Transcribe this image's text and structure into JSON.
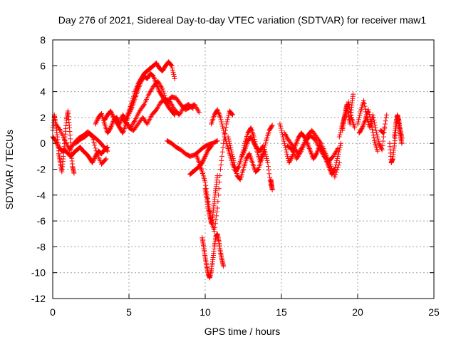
{
  "chart_data": {
    "type": "scatter",
    "title": "Day 276 of 2021, Sidereal Day-to-day VTEC variation (SDTVAR) for receiver maw1",
    "xlabel": "GPS time / hours",
    "ylabel": "SDTVAR / TECUs",
    "xlim": [
      0,
      25
    ],
    "ylim": [
      -12,
      8
    ],
    "xticks": [
      0,
      5,
      10,
      15,
      20,
      25
    ],
    "yticks": [
      -12,
      -10,
      -8,
      -6,
      -4,
      -2,
      0,
      2,
      4,
      6,
      8
    ],
    "grid": true,
    "marker": "+",
    "color": "#ff0000",
    "segments": [
      {
        "x": [
          0.0,
          0.1,
          0.2,
          0.3,
          0.4,
          0.5,
          0.6,
          0.7,
          0.8,
          0.9,
          1.0,
          1.1,
          1.2,
          1.3,
          1.4
        ],
        "y": [
          1.0,
          2.2,
          1.5,
          0.5,
          -0.8,
          -1.5,
          -2.2,
          -1.0,
          0.5,
          1.8,
          2.5,
          1.2,
          -0.5,
          -1.8,
          -2.3
        ]
      },
      {
        "x": [
          0.0,
          0.2,
          0.4,
          0.6,
          0.8,
          1.0,
          1.2,
          1.4,
          1.6,
          1.8,
          2.0,
          2.2,
          2.4,
          2.6,
          2.8,
          3.0,
          3.2,
          3.4,
          3.6
        ],
        "y": [
          0.5,
          0.2,
          -0.3,
          -0.6,
          -0.5,
          -0.8,
          -1.0,
          -0.7,
          -0.5,
          -0.3,
          -0.6,
          -0.8,
          -1.1,
          -1.5,
          -1.0,
          -0.6,
          -0.8,
          -0.5,
          -0.3
        ]
      },
      {
        "x": [
          0.2,
          0.5,
          0.8,
          1.1,
          1.4,
          1.7,
          2.0,
          2.3,
          2.6,
          2.9,
          3.2,
          3.5
        ],
        "y": [
          1.5,
          1.0,
          0.2,
          -0.5,
          0.0,
          0.4,
          0.6,
          0.9,
          0.5,
          -0.8,
          -1.6,
          -1.2
        ]
      },
      {
        "x": [
          1.5,
          1.8,
          2.1,
          2.4,
          2.7,
          3.0,
          3.3,
          3.6
        ],
        "y": [
          0.0,
          0.3,
          0.5,
          0.8,
          0.5,
          0.2,
          -0.2,
          -0.6
        ]
      },
      {
        "x": [
          2.8,
          3.0,
          3.2,
          3.4,
          3.6,
          3.8,
          4.0,
          4.2,
          4.4,
          4.6,
          4.8,
          5.0,
          5.2,
          5.4,
          5.6,
          5.8,
          6.0,
          6.2,
          6.4,
          6.6,
          6.8,
          7.0,
          7.2,
          7.4,
          7.6,
          7.8,
          8.0
        ],
        "y": [
          1.5,
          2.0,
          2.3,
          1.5,
          0.8,
          1.2,
          1.8,
          2.0,
          1.5,
          2.2,
          1.8,
          2.5,
          3.2,
          4.0,
          4.6,
          5.0,
          5.4,
          5.6,
          5.8,
          6.0,
          6.2,
          5.8,
          5.6,
          6.0,
          6.3,
          6.0,
          5.0
        ]
      },
      {
        "x": [
          3.4,
          3.6,
          3.8,
          4.0,
          4.2,
          4.4,
          4.6,
          4.8,
          5.0,
          5.2,
          5.4,
          5.6,
          5.8,
          6.0,
          6.2,
          6.4,
          6.6,
          6.8,
          7.0,
          7.2,
          7.4,
          7.6,
          7.8,
          8.0
        ],
        "y": [
          1.8,
          2.2,
          2.5,
          2.0,
          1.6,
          1.2,
          0.8,
          1.5,
          2.3,
          2.8,
          3.5,
          4.2,
          4.8,
          5.2,
          5.0,
          5.4,
          5.2,
          4.6,
          4.0,
          3.6,
          3.2,
          2.8,
          2.5,
          2.2
        ]
      },
      {
        "x": [
          4.5,
          4.8,
          5.1,
          5.4,
          5.7,
          6.0,
          6.3,
          6.6,
          6.9,
          7.2,
          7.5,
          7.8,
          8.1,
          8.4,
          8.7,
          9.0,
          9.3,
          9.6
        ],
        "y": [
          2.0,
          1.6,
          1.2,
          1.8,
          2.5,
          3.0,
          3.8,
          4.4,
          4.8,
          4.2,
          3.2,
          3.6,
          3.5,
          3.0,
          2.6,
          2.8,
          3.0,
          2.4
        ]
      },
      {
        "x": [
          5.0,
          5.3,
          5.6,
          5.9,
          6.2,
          6.5,
          6.8,
          7.1,
          7.4,
          7.7,
          8.0,
          8.3,
          8.6,
          8.9,
          9.2
        ],
        "y": [
          1.2,
          1.0,
          1.5,
          2.0,
          1.5,
          2.2,
          2.6,
          3.2,
          3.4,
          3.2,
          2.6,
          2.2,
          2.8,
          3.0,
          2.7
        ]
      },
      {
        "x": [
          7.5,
          7.8,
          8.1,
          8.4,
          8.7,
          9.0,
          9.3,
          9.6,
          9.9,
          10.2,
          10.5,
          10.8
        ],
        "y": [
          0.2,
          0.0,
          -0.3,
          -0.5,
          -0.8,
          -1.0,
          -0.9,
          -0.6,
          -0.3,
          -0.1,
          0.0,
          0.2
        ]
      },
      {
        "x": [
          9.0,
          9.2,
          9.4,
          9.6,
          9.8,
          10.0,
          10.2,
          10.4
        ],
        "y": [
          -2.4,
          -2.2,
          -2.0,
          -1.8,
          -1.5,
          -1.0,
          -0.5,
          -0.2
        ]
      },
      {
        "x": [
          9.4,
          9.6,
          9.8,
          10.0,
          10.2,
          10.4,
          10.6,
          10.8,
          11.0,
          11.2,
          11.4,
          11.6,
          11.8
        ],
        "y": [
          -0.8,
          -1.5,
          -2.2,
          -3.0,
          -4.5,
          -6.0,
          -6.8,
          -5.0,
          -2.0,
          0.0,
          1.5,
          2.5,
          2.2
        ]
      },
      {
        "x": [
          9.8,
          9.9,
          10.0,
          10.1,
          10.2,
          10.3,
          10.4,
          10.5,
          10.6,
          10.7,
          10.8,
          10.9,
          11.0,
          11.1,
          11.2
        ],
        "y": [
          -7.3,
          -8.0,
          -8.8,
          -9.5,
          -10.1,
          -10.4,
          -9.8,
          -9.0,
          -8.0,
          -7.2,
          -7.0,
          -7.6,
          -8.4,
          -9.0,
          -9.5
        ]
      },
      {
        "x": [
          10.0,
          10.1,
          10.2,
          10.3,
          10.4,
          10.5,
          10.6,
          10.7,
          10.8
        ],
        "y": [
          -3.5,
          -4.2,
          -5.0,
          -5.6,
          -6.2,
          -5.5,
          -4.5,
          -3.5,
          -2.5
        ]
      },
      {
        "x": [
          10.4,
          10.6,
          10.8,
          11.0,
          11.2,
          11.4,
          11.6,
          11.8,
          12.0,
          12.2,
          12.4,
          12.6,
          12.8,
          13.0,
          13.2,
          13.4,
          13.6,
          13.8,
          14.0,
          14.2,
          14.4
        ],
        "y": [
          1.5,
          2.2,
          2.6,
          2.0,
          1.0,
          0.0,
          -0.8,
          -1.6,
          -2.2,
          -1.8,
          -1.0,
          0.0,
          0.8,
          1.2,
          0.5,
          -0.6,
          -1.4,
          -0.8,
          0.2,
          1.0,
          1.4
        ]
      },
      {
        "x": [
          11.5,
          11.7,
          11.9,
          12.1,
          12.3,
          12.5,
          12.7,
          12.9,
          13.1,
          13.3,
          13.5,
          13.7,
          13.9,
          14.1,
          14.3
        ],
        "y": [
          0.5,
          -0.5,
          -1.5,
          -2.5,
          -2.8,
          -2.0,
          -1.2,
          -0.8,
          -1.5,
          -2.2,
          -2.0,
          -1.2,
          -0.5,
          -1.5,
          -3.2
        ]
      },
      {
        "x": [
          12.4,
          12.6,
          12.8,
          13.0,
          13.2,
          13.4,
          13.6,
          13.8
        ],
        "y": [
          -1.0,
          -0.5,
          0.2,
          0.5,
          0.0,
          -0.4,
          -0.6,
          -0.2
        ]
      },
      {
        "x": [
          14.3,
          14.35,
          14.4
        ],
        "y": [
          -2.8,
          -3.2,
          -3.6
        ]
      },
      {
        "x": [
          14.9,
          15.1,
          15.3,
          15.5,
          15.7,
          15.9,
          16.1,
          16.3,
          16.5,
          16.7,
          16.9,
          17.1,
          17.3,
          17.5,
          17.7,
          17.9,
          18.1,
          18.3,
          18.5,
          18.7,
          18.9
        ],
        "y": [
          1.5,
          0.5,
          -0.5,
          -1.5,
          -1.0,
          -0.2,
          0.4,
          0.8,
          0.5,
          0.0,
          -0.6,
          -1.2,
          -0.8,
          -0.2,
          -0.6,
          -1.2,
          -1.8,
          -2.4,
          -2.0,
          -1.0,
          0.0
        ]
      },
      {
        "x": [
          15.2,
          15.5,
          15.8,
          16.1,
          16.4,
          16.7,
          17.0,
          17.3,
          17.6,
          17.9,
          18.2,
          18.5,
          18.8
        ],
        "y": [
          0.8,
          0.2,
          -0.3,
          -0.8,
          -0.2,
          0.6,
          1.0,
          0.5,
          0.0,
          -0.8,
          -1.6,
          -2.6,
          -1.5
        ]
      },
      {
        "x": [
          15.4,
          15.7,
          16.0,
          16.3,
          16.6,
          16.9,
          17.2,
          17.5,
          17.8,
          18.1,
          18.4,
          18.7
        ],
        "y": [
          -0.2,
          -0.5,
          -1.2,
          -0.6,
          0.2,
          0.6,
          0.3,
          -0.4,
          -1.0,
          -1.4,
          -1.0,
          -0.4
        ]
      },
      {
        "x": [
          18.8,
          19.0,
          19.2,
          19.4,
          19.6,
          19.8
        ],
        "y": [
          0.5,
          1.5,
          2.2,
          3.2,
          2.0,
          1.2
        ]
      },
      {
        "x": [
          19.0,
          19.1,
          19.2,
          19.3,
          19.4,
          19.5,
          19.6,
          19.7
        ],
        "y": [
          1.0,
          1.8,
          2.5,
          3.0,
          2.2,
          1.5,
          2.8,
          3.8
        ]
      },
      {
        "x": [
          20.0,
          20.2,
          20.4,
          20.6,
          20.8,
          21.0,
          21.2,
          21.4,
          21.6,
          21.8
        ],
        "y": [
          1.5,
          2.5,
          3.3,
          2.0,
          1.2,
          2.2,
          1.0,
          0.0,
          -0.5,
          1.5
        ]
      },
      {
        "x": [
          20.1,
          20.3,
          20.5,
          20.7,
          20.9,
          21.1,
          21.3
        ],
        "y": [
          0.8,
          1.2,
          1.8,
          2.6,
          1.5,
          0.2,
          -0.6
        ]
      },
      {
        "x": [
          21.5,
          21.7,
          21.9
        ],
        "y": [
          1.0,
          0.8,
          2.2
        ]
      },
      {
        "x": [
          22.1,
          22.2,
          22.3,
          22.4,
          22.5,
          22.6,
          22.7,
          22.8,
          22.9
        ],
        "y": [
          0.0,
          -1.5,
          -1.2,
          -0.2,
          1.0,
          2.0,
          1.5,
          0.6,
          0.0
        ]
      },
      {
        "x": [
          22.4,
          22.5,
          22.6,
          22.7,
          22.8,
          22.9
        ],
        "y": [
          0.5,
          1.5,
          2.2,
          1.8,
          1.0,
          0.4
        ]
      }
    ]
  }
}
